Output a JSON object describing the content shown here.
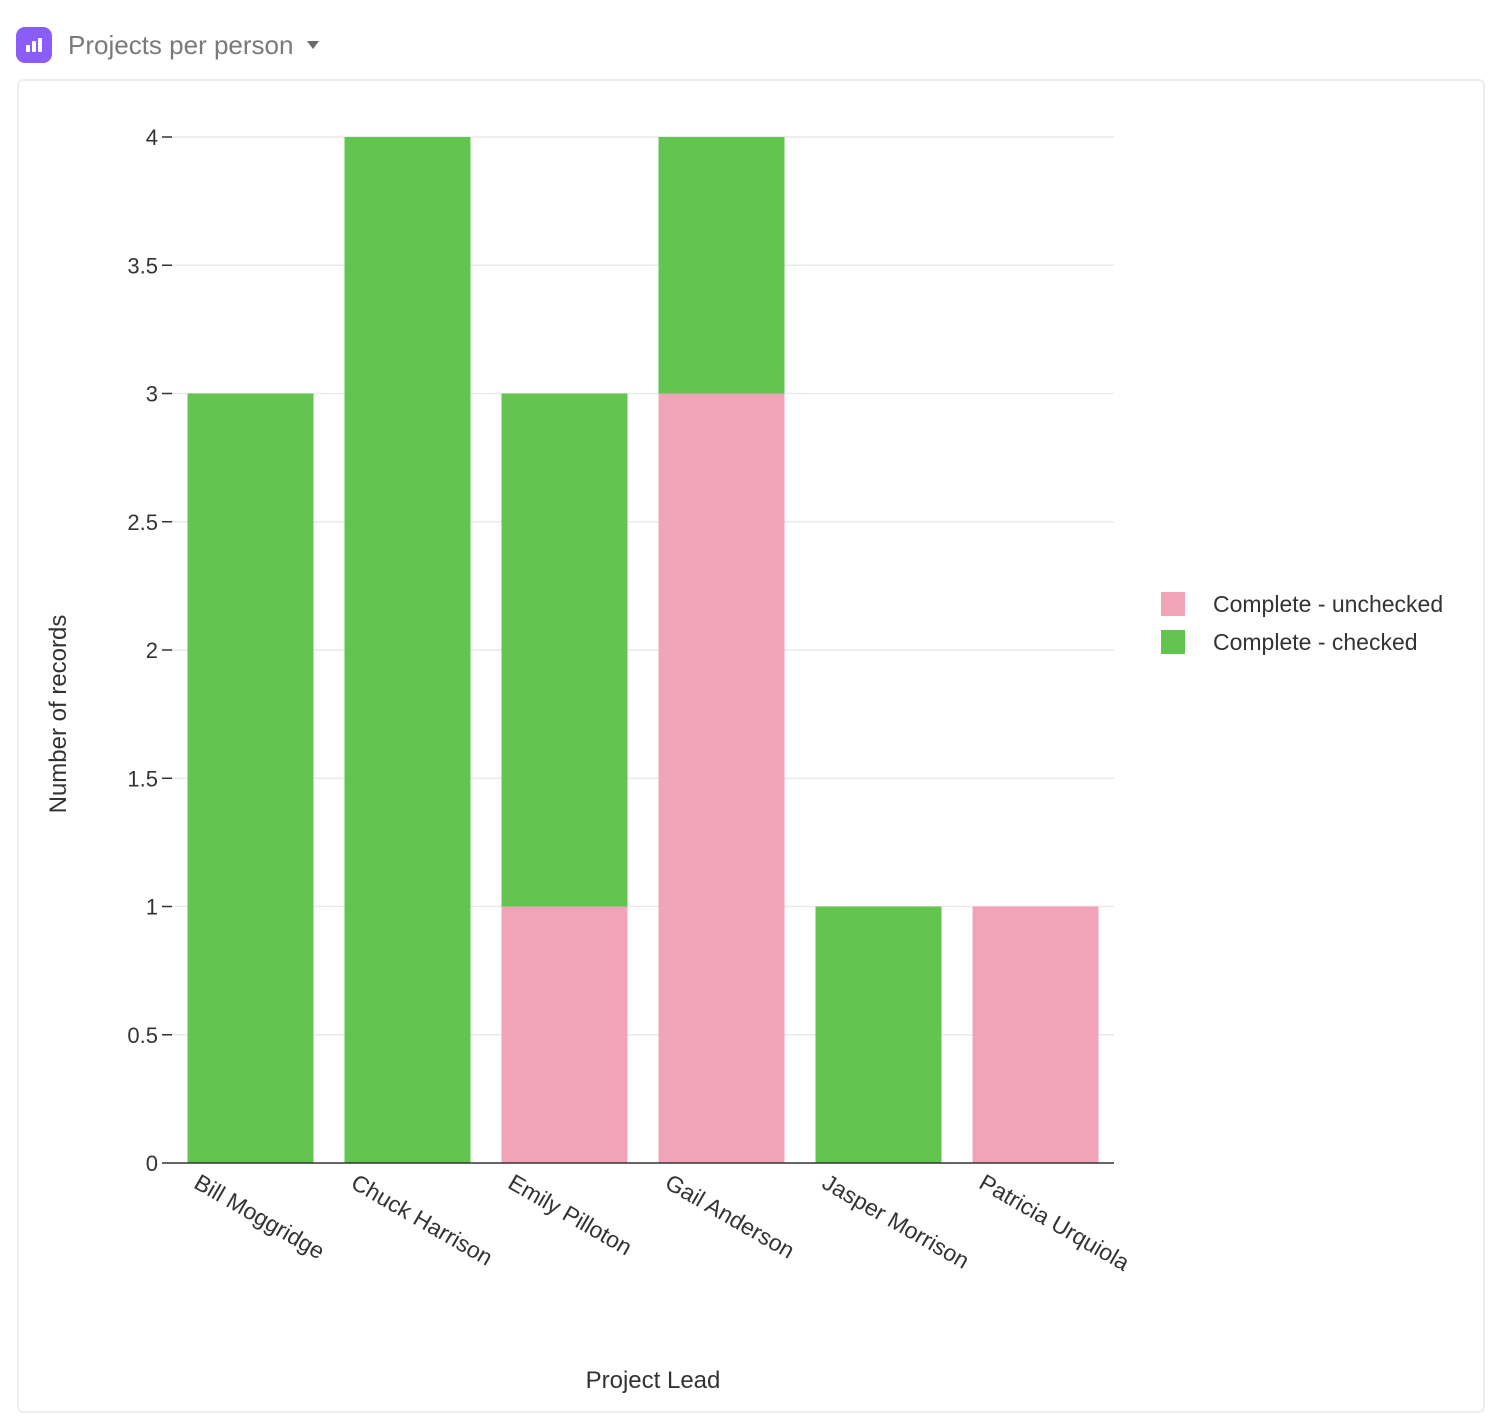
{
  "header": {
    "title": "Projects per person",
    "icon": "bar-chart-icon",
    "accent": "#8b5cf6"
  },
  "chart_data": {
    "type": "bar",
    "stacked": true,
    "categories": [
      "Bill Moggridge",
      "Chuck Harrison",
      "Emily Pilloton",
      "Gail Anderson",
      "Jasper Morrison",
      "Patricia Urquiola"
    ],
    "series": [
      {
        "name": "Complete - unchecked",
        "color": "#f1a4b8",
        "values": [
          0,
          0,
          1,
          3,
          0,
          1
        ]
      },
      {
        "name": "Complete - checked",
        "color": "#63c44f",
        "values": [
          3,
          4,
          2,
          1,
          1,
          0
        ]
      }
    ],
    "xlabel": "Project Lead",
    "ylabel": "Number of records",
    "ylim": [
      0,
      4
    ],
    "yticks": [
      0,
      0.5,
      1,
      1.5,
      2,
      2.5,
      3,
      3.5,
      4
    ],
    "grid": true,
    "legend_position": "right"
  }
}
